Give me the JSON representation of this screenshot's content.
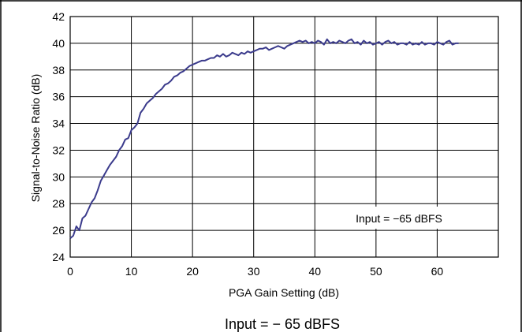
{
  "chart_data": {
    "type": "line",
    "xlabel": "PGA Gain Setting (dB)",
    "ylabel": "Signal-to-Noise Ratio (dB)",
    "xlim": [
      0,
      70
    ],
    "ylim": [
      24,
      42
    ],
    "xticks": [
      0,
      10,
      20,
      30,
      40,
      50,
      60
    ],
    "yticks": [
      24,
      26,
      28,
      30,
      32,
      34,
      36,
      38,
      40,
      42
    ],
    "grid": true,
    "line_color": "#3b3b8c",
    "annotation": "Input = −65 dBFS",
    "series": [
      {
        "x": [
          0,
          0.5,
          1,
          1.5,
          2,
          2.5,
          3,
          3.5,
          4,
          4.5,
          5,
          5.5,
          6,
          6.5,
          7,
          7.5,
          8,
          8.5,
          9,
          9.5,
          10,
          10.5,
          11,
          11.5,
          12,
          12.5,
          13,
          13.5,
          14,
          14.5,
          15,
          15.5,
          16,
          16.5,
          17,
          17.5,
          18,
          18.5,
          19,
          19.5,
          20,
          20.5,
          21,
          21.5,
          22,
          22.5,
          23,
          23.5,
          24,
          24.5,
          25,
          25.5,
          26,
          26.5,
          27,
          27.5,
          28,
          28.5,
          29,
          29.5,
          30,
          30.5,
          31,
          31.5,
          32,
          32.5,
          33,
          33.5,
          34,
          34.5,
          35,
          35.5,
          36,
          36.5,
          37,
          37.5,
          38,
          38.5,
          39,
          39.5,
          40,
          40.5,
          41,
          41.5,
          42,
          42.5,
          43,
          43.5,
          44,
          44.5,
          45,
          45.5,
          46,
          46.5,
          47,
          47.5,
          48,
          48.5,
          49,
          49.5,
          50,
          50.5,
          51,
          51.5,
          52,
          52.5,
          53,
          53.5,
          54,
          54.5,
          55,
          55.5,
          56,
          56.5,
          57,
          57.5,
          58,
          58.5,
          59,
          59.5,
          60,
          60.5,
          61,
          61.5,
          62,
          62.5,
          63,
          63.5
        ],
        "values": [
          25.4,
          25.6,
          26.3,
          26.0,
          26.9,
          27.1,
          27.6,
          28.1,
          28.4,
          29.0,
          29.7,
          30.1,
          30.5,
          30.9,
          31.2,
          31.5,
          32.0,
          32.3,
          32.8,
          32.9,
          33.5,
          33.7,
          34.0,
          34.8,
          35.1,
          35.5,
          35.7,
          35.9,
          36.2,
          36.4,
          36.6,
          36.9,
          37.0,
          37.2,
          37.5,
          37.6,
          37.8,
          37.9,
          38.1,
          38.3,
          38.4,
          38.5,
          38.6,
          38.7,
          38.7,
          38.8,
          38.9,
          38.9,
          39.1,
          39.0,
          39.2,
          39.0,
          39.1,
          39.3,
          39.2,
          39.1,
          39.3,
          39.2,
          39.4,
          39.3,
          39.4,
          39.5,
          39.6,
          39.6,
          39.7,
          39.5,
          39.6,
          39.7,
          39.8,
          39.7,
          39.6,
          39.8,
          39.9,
          40.0,
          40.1,
          40.2,
          40.1,
          40.2,
          40.0,
          40.1,
          40.0,
          40.2,
          40.1,
          39.9,
          40.3,
          40.0,
          40.1,
          40.0,
          40.2,
          40.1,
          40.0,
          40.2,
          40.3,
          40.0,
          40.1,
          39.9,
          40.2,
          40.0,
          40.1,
          39.9,
          40.0,
          40.1,
          39.9,
          40.1,
          40.2,
          40.0,
          40.1,
          39.9,
          40.0,
          40.0,
          39.9,
          40.1,
          39.9,
          40.0,
          39.9,
          40.1,
          39.9,
          40.0,
          40.0,
          39.9,
          40.1,
          40.0,
          39.9,
          40.1,
          40.2,
          39.9,
          40.0,
          40.0
        ]
      }
    ]
  },
  "caption": "Input = − 65 dBFS"
}
